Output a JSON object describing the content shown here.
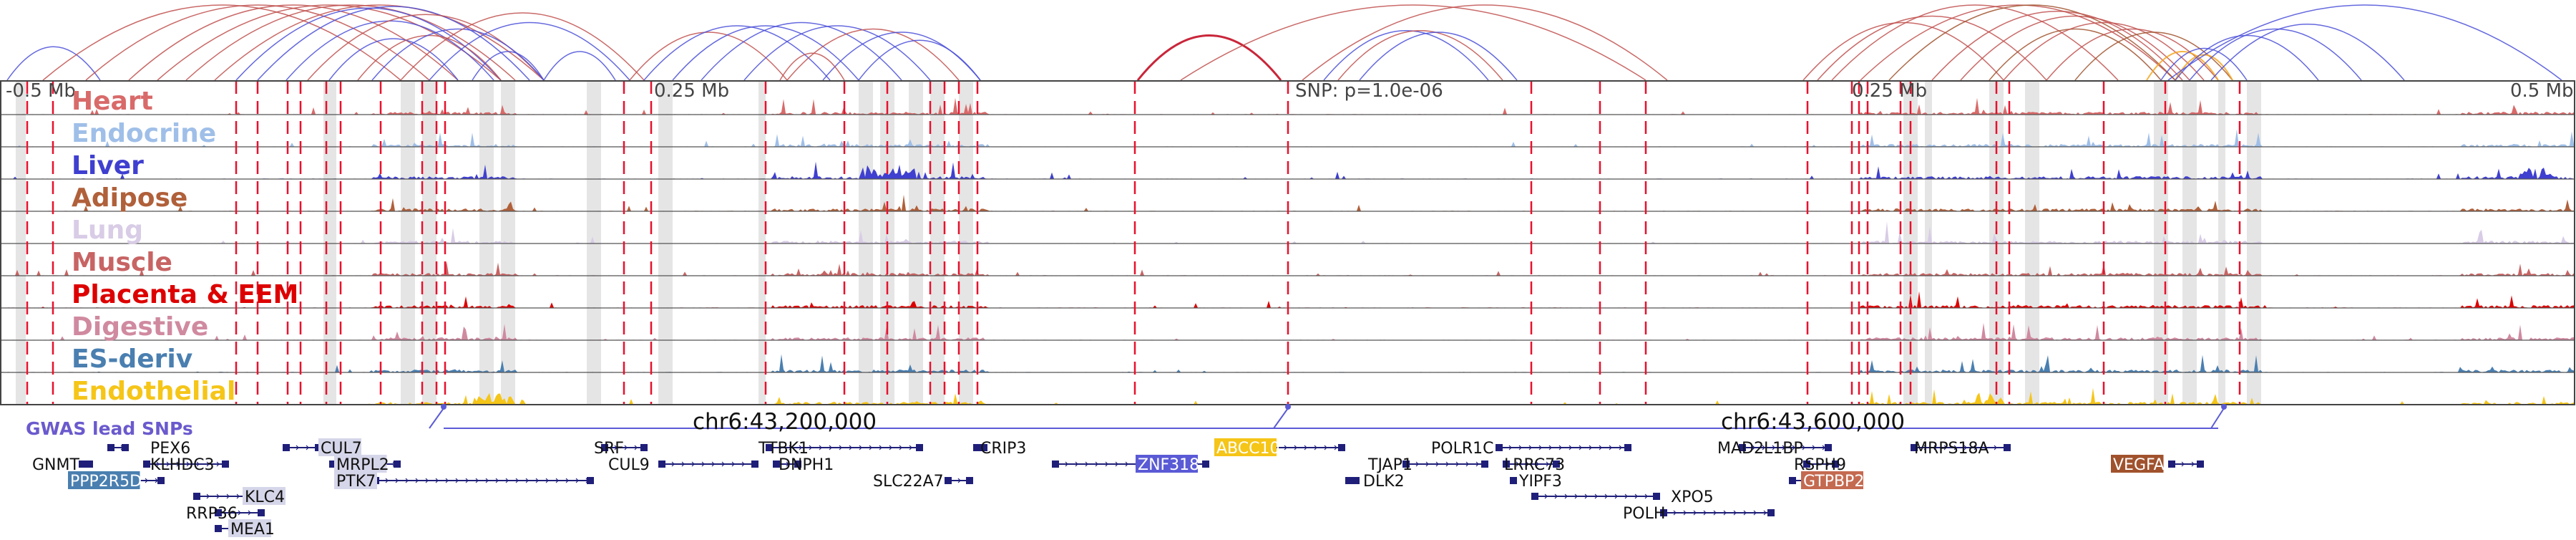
{
  "panel": {
    "left_axis_label": "-0.5 Mb",
    "left_mid_label": "0.25 Mb",
    "snp_label": "SNP: p=1.0e-06",
    "right_mid_label": "0.25 Mb",
    "right_axis_label": "0.5 Mb",
    "coord_left": "chr6:43,200,000",
    "coord_right": "chr6:43,600,000",
    "gwas_label": "GWAS lead SNPs"
  },
  "colors": {
    "blue_arc": "#4a4fd8",
    "red_arc": "#c0504d",
    "brown_arc": "#a0522d",
    "orange_arc": "#f5a623",
    "dashed_line": "#e8112d",
    "gene_blue": "#1f1f7a",
    "hl_grey": "#cfcfcf"
  },
  "tracks": [
    {
      "name": "Heart",
      "color": "#d96a6a"
    },
    {
      "name": "Endocrine",
      "color": "#9fbfe8"
    },
    {
      "name": "Liver",
      "color": "#3f3fd0"
    },
    {
      "name": "Adipose",
      "color": "#b0603a"
    },
    {
      "name": "Lung",
      "color": "#d8cce6"
    },
    {
      "name": "Muscle",
      "color": "#c86464"
    },
    {
      "name": "Placenta & EEM",
      "color": "#dd0000"
    },
    {
      "name": "Digestive",
      "color": "#d08aa0"
    },
    {
      "name": "ES-deriv",
      "color": "#4a7fb0"
    },
    {
      "name": "Endothelial",
      "color": "#f5c518"
    }
  ],
  "genes": [
    {
      "name": "PEX6",
      "row": 0,
      "hl": null
    },
    {
      "name": "CUL7",
      "row": 0,
      "hl": "#d6d6ea"
    },
    {
      "name": "SRF",
      "row": 0,
      "hl": null
    },
    {
      "name": "TTBK1",
      "row": 0,
      "hl": null
    },
    {
      "name": "CRIP3",
      "row": 0,
      "hl": null
    },
    {
      "name": "ABCC10",
      "row": 0,
      "hl": "#f5c518"
    },
    {
      "name": "POLR1C",
      "row": 0,
      "hl": null
    },
    {
      "name": "MAD2L1BP",
      "row": 0,
      "hl": null
    },
    {
      "name": "MRPS18A",
      "row": 0,
      "hl": null
    },
    {
      "name": "GNMT",
      "row": 1,
      "hl": null
    },
    {
      "name": "KLHDC3",
      "row": 1,
      "hl": null
    },
    {
      "name": "MRPL2",
      "row": 1,
      "hl": "#d6d6ea"
    },
    {
      "name": "CUL9",
      "row": 1,
      "hl": null
    },
    {
      "name": "DNPH1",
      "row": 1,
      "hl": null
    },
    {
      "name": "ZNF318",
      "row": 1,
      "hl": "#5a5ad6"
    },
    {
      "name": "TJAP1",
      "row": 1,
      "hl": null
    },
    {
      "name": "LRRC73",
      "row": 1,
      "hl": null
    },
    {
      "name": "RSPH9",
      "row": 1,
      "hl": null
    },
    {
      "name": "VEGFA",
      "row": 1,
      "hl": "#a0522d"
    },
    {
      "name": "PPP2R5D",
      "row": 2,
      "hl": "#4a7fb0"
    },
    {
      "name": "PTK7",
      "row": 2,
      "hl": "#d6d6ea"
    },
    {
      "name": "SLC22A7",
      "row": 2,
      "hl": null
    },
    {
      "name": "DLK2",
      "row": 2,
      "hl": null
    },
    {
      "name": "YIPF3",
      "row": 2,
      "hl": null
    },
    {
      "name": "GTPBP2",
      "row": 2,
      "hl": "#c46a50"
    },
    {
      "name": "KLC4",
      "row": 3,
      "hl": "#d6d6ea"
    },
    {
      "name": "XPO5",
      "row": 3,
      "hl": null
    },
    {
      "name": "RRP36",
      "row": 4,
      "hl": null
    },
    {
      "name": "POLH",
      "row": 4,
      "hl": null
    },
    {
      "name": "MEA1",
      "row": 5,
      "hl": "#d6d6ea"
    }
  ]
}
